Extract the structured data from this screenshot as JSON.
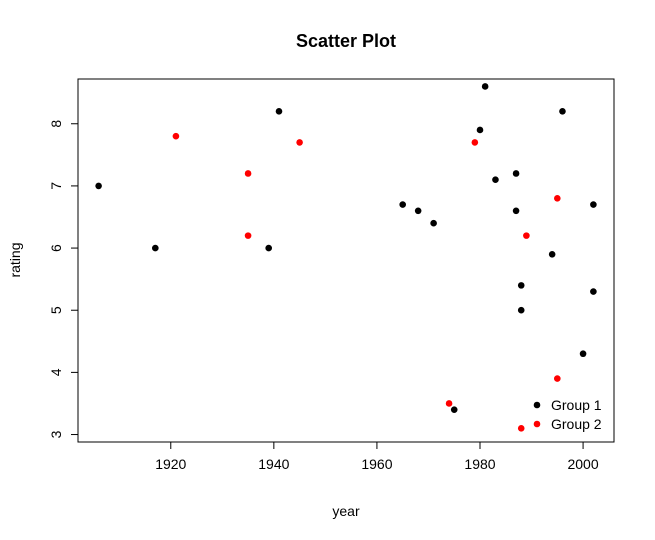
{
  "chart_data": {
    "type": "scatter",
    "title": "Scatter Plot",
    "xlabel": "year",
    "ylabel": "rating",
    "xlim": [
      1902,
      2006
    ],
    "ylim": [
      2.88,
      8.72
    ],
    "xticks": [
      1920,
      1940,
      1960,
      1980,
      2000
    ],
    "yticks": [
      3,
      4,
      5,
      6,
      7,
      8
    ],
    "grid": false,
    "legend": {
      "position": "bottom-right"
    },
    "series": [
      {
        "name": "Group 1",
        "color": "#000000",
        "points": [
          {
            "x": 1906,
            "y": 7.0
          },
          {
            "x": 1917,
            "y": 6.0
          },
          {
            "x": 1939,
            "y": 6.0
          },
          {
            "x": 1941,
            "y": 8.2
          },
          {
            "x": 1965,
            "y": 6.7
          },
          {
            "x": 1968,
            "y": 6.6
          },
          {
            "x": 1971,
            "y": 6.4
          },
          {
            "x": 1975,
            "y": 3.4
          },
          {
            "x": 1980,
            "y": 7.9
          },
          {
            "x": 1981,
            "y": 8.6
          },
          {
            "x": 1983,
            "y": 7.1
          },
          {
            "x": 1987,
            "y": 7.2
          },
          {
            "x": 1987,
            "y": 6.6
          },
          {
            "x": 1988,
            "y": 5.4
          },
          {
            "x": 1988,
            "y": 5.0
          },
          {
            "x": 1994,
            "y": 5.9
          },
          {
            "x": 1996,
            "y": 8.2
          },
          {
            "x": 2000,
            "y": 4.3
          },
          {
            "x": 2002,
            "y": 6.7
          },
          {
            "x": 2002,
            "y": 5.3
          }
        ]
      },
      {
        "name": "Group 2",
        "color": "#ff0000",
        "points": [
          {
            "x": 1921,
            "y": 7.8
          },
          {
            "x": 1935,
            "y": 7.2
          },
          {
            "x": 1935,
            "y": 6.2
          },
          {
            "x": 1945,
            "y": 7.7
          },
          {
            "x": 1974,
            "y": 3.5
          },
          {
            "x": 1979,
            "y": 7.7
          },
          {
            "x": 1988,
            "y": 3.1
          },
          {
            "x": 1989,
            "y": 6.2
          },
          {
            "x": 1995,
            "y": 6.8
          },
          {
            "x": 1995,
            "y": 3.9
          }
        ]
      }
    ]
  }
}
